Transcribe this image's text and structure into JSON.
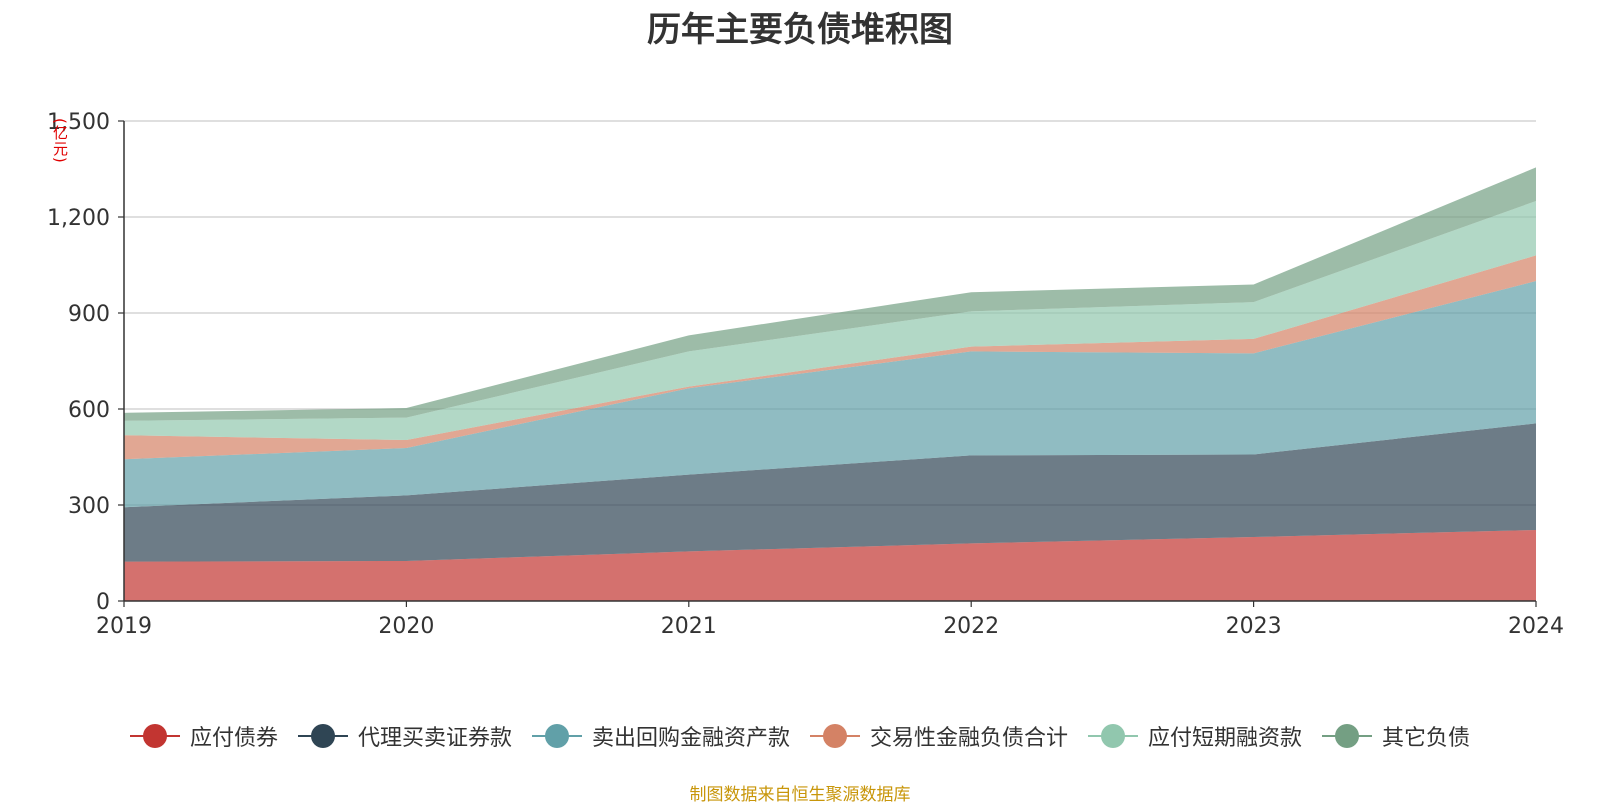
{
  "chart_data": {
    "type": "area",
    "title": "历年主要负债堆积图",
    "unit": "(亿元)",
    "x": [
      "2019",
      "2020",
      "2021",
      "2022",
      "2023",
      "2024"
    ],
    "ylim": [
      0,
      1500
    ],
    "yticks": [
      0,
      300,
      600,
      900,
      1200,
      1500
    ],
    "ytick_labels": [
      "0",
      "300",
      "600",
      "900",
      "1,200",
      "1,500"
    ],
    "grid": true,
    "stacked": true,
    "legend_position": "bottom",
    "series": [
      {
        "name": "应付债券",
        "color": "#c23531",
        "values": [
          123,
          125,
          155,
          180,
          200,
          222
        ]
      },
      {
        "name": "代理买卖证券款",
        "color": "#2f4554",
        "values": [
          170,
          205,
          240,
          275,
          258,
          333
        ]
      },
      {
        "name": "卖出回购金融资产款",
        "color": "#61a0a8",
        "values": [
          150,
          148,
          270,
          325,
          316,
          445
        ]
      },
      {
        "name": "交易性金融负债合计",
        "color": "#d48265",
        "values": [
          75,
          25,
          5,
          15,
          45,
          80
        ]
      },
      {
        "name": "应付短期融资款",
        "color": "#91c7ae",
        "values": [
          45,
          70,
          110,
          110,
          115,
          170
        ]
      },
      {
        "name": "其它负债",
        "color": "#749f83",
        "values": [
          25,
          30,
          50,
          60,
          55,
          105
        ]
      }
    ],
    "source": "制图数据来自恒生聚源数据库"
  }
}
